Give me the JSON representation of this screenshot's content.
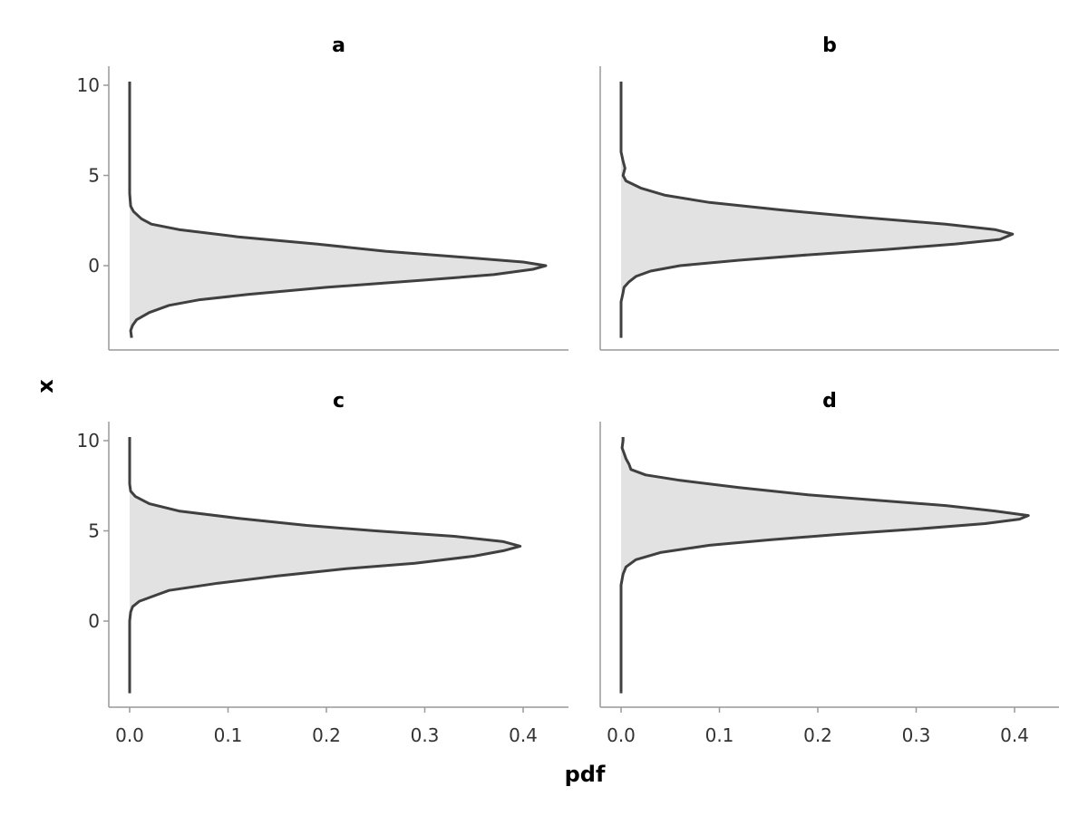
{
  "chart_data": {
    "type": "area",
    "description_orientation": "horizontal density (pdf on horizontal axis, x on vertical axis)",
    "xlabel": "pdf",
    "ylabel": "x",
    "xlim": [
      -0.02,
      0.44
    ],
    "ylim": [
      -4.6,
      11
    ],
    "xticks": [
      0.0,
      0.1,
      0.2,
      0.3,
      0.4
    ],
    "xtick_labels": [
      "0.0",
      "0.1",
      "0.2",
      "0.3",
      "0.4"
    ],
    "yticks": [
      10,
      5,
      0
    ],
    "ytick_labels": [
      "10",
      "5",
      "0"
    ],
    "grid": false,
    "colors": {
      "fill": "#e2e2e2",
      "line": "#404040",
      "axis": "#999999"
    },
    "panels": [
      {
        "title": "a",
        "points": [
          [
            -4.0,
            0.002
          ],
          [
            -3.6,
            0.001
          ],
          [
            -3.3,
            0.003
          ],
          [
            -3.0,
            0.007
          ],
          [
            -2.6,
            0.02
          ],
          [
            -2.2,
            0.04
          ],
          [
            -1.9,
            0.07
          ],
          [
            -1.6,
            0.12
          ],
          [
            -1.2,
            0.2
          ],
          [
            -0.8,
            0.3
          ],
          [
            -0.5,
            0.37
          ],
          [
            -0.2,
            0.41
          ],
          [
            0.0,
            0.423
          ],
          [
            0.2,
            0.4
          ],
          [
            0.5,
            0.33
          ],
          [
            0.8,
            0.26
          ],
          [
            1.2,
            0.19
          ],
          [
            1.6,
            0.11
          ],
          [
            2.0,
            0.05
          ],
          [
            2.3,
            0.022
          ],
          [
            2.6,
            0.012
          ],
          [
            3.0,
            0.004
          ],
          [
            3.3,
            0.001
          ],
          [
            4.0,
            0.0
          ],
          [
            6.0,
            0.0
          ],
          [
            8.0,
            0.0
          ],
          [
            10.2,
            0.0
          ]
        ]
      },
      {
        "title": "b",
        "points": [
          [
            -4.0,
            0.0
          ],
          [
            -3.0,
            0.0
          ],
          [
            -2.0,
            0.0
          ],
          [
            -1.5,
            0.002
          ],
          [
            -1.2,
            0.003
          ],
          [
            -0.9,
            0.008
          ],
          [
            -0.6,
            0.015
          ],
          [
            -0.3,
            0.03
          ],
          [
            0.0,
            0.06
          ],
          [
            0.3,
            0.12
          ],
          [
            0.6,
            0.19
          ],
          [
            0.9,
            0.27
          ],
          [
            1.2,
            0.34
          ],
          [
            1.45,
            0.385
          ],
          [
            1.75,
            0.398
          ],
          [
            2.0,
            0.38
          ],
          [
            2.3,
            0.33
          ],
          [
            2.7,
            0.24
          ],
          [
            3.1,
            0.16
          ],
          [
            3.5,
            0.09
          ],
          [
            3.9,
            0.045
          ],
          [
            4.3,
            0.02
          ],
          [
            4.7,
            0.005
          ],
          [
            5.0,
            0.002
          ],
          [
            5.4,
            0.004
          ],
          [
            5.8,
            0.002
          ],
          [
            6.3,
            0.0
          ],
          [
            8.0,
            0.0
          ],
          [
            10.2,
            0.0
          ]
        ]
      },
      {
        "title": "c",
        "points": [
          [
            -4.0,
            0.0
          ],
          [
            -2.0,
            0.0
          ],
          [
            0.0,
            0.0
          ],
          [
            0.5,
            0.001
          ],
          [
            0.8,
            0.003
          ],
          [
            1.1,
            0.01
          ],
          [
            1.4,
            0.025
          ],
          [
            1.7,
            0.04
          ],
          [
            2.1,
            0.09
          ],
          [
            2.5,
            0.15
          ],
          [
            2.9,
            0.22
          ],
          [
            3.2,
            0.29
          ],
          [
            3.6,
            0.35
          ],
          [
            3.9,
            0.38
          ],
          [
            4.15,
            0.397
          ],
          [
            4.4,
            0.38
          ],
          [
            4.7,
            0.33
          ],
          [
            5.0,
            0.25
          ],
          [
            5.3,
            0.18
          ],
          [
            5.7,
            0.11
          ],
          [
            6.1,
            0.05
          ],
          [
            6.5,
            0.02
          ],
          [
            6.9,
            0.006
          ],
          [
            7.2,
            0.001
          ],
          [
            7.6,
            0.0
          ],
          [
            9.0,
            0.0
          ],
          [
            10.2,
            0.0
          ]
        ]
      },
      {
        "title": "d",
        "points": [
          [
            -4.0,
            0.0
          ],
          [
            -2.0,
            0.0
          ],
          [
            0.0,
            0.0
          ],
          [
            2.0,
            0.0
          ],
          [
            2.6,
            0.002
          ],
          [
            3.0,
            0.005
          ],
          [
            3.4,
            0.015
          ],
          [
            3.8,
            0.04
          ],
          [
            4.2,
            0.09
          ],
          [
            4.5,
            0.15
          ],
          [
            4.8,
            0.22
          ],
          [
            5.1,
            0.3
          ],
          [
            5.4,
            0.37
          ],
          [
            5.65,
            0.405
          ],
          [
            5.85,
            0.414
          ],
          [
            6.1,
            0.38
          ],
          [
            6.4,
            0.33
          ],
          [
            6.7,
            0.26
          ],
          [
            7.0,
            0.19
          ],
          [
            7.4,
            0.12
          ],
          [
            7.8,
            0.06
          ],
          [
            8.1,
            0.025
          ],
          [
            8.4,
            0.01
          ],
          [
            8.7,
            0.008
          ],
          [
            9.0,
            0.005
          ],
          [
            9.3,
            0.003
          ],
          [
            9.6,
            0.001
          ],
          [
            10.0,
            0.002
          ],
          [
            10.2,
            0.002
          ]
        ]
      }
    ]
  }
}
